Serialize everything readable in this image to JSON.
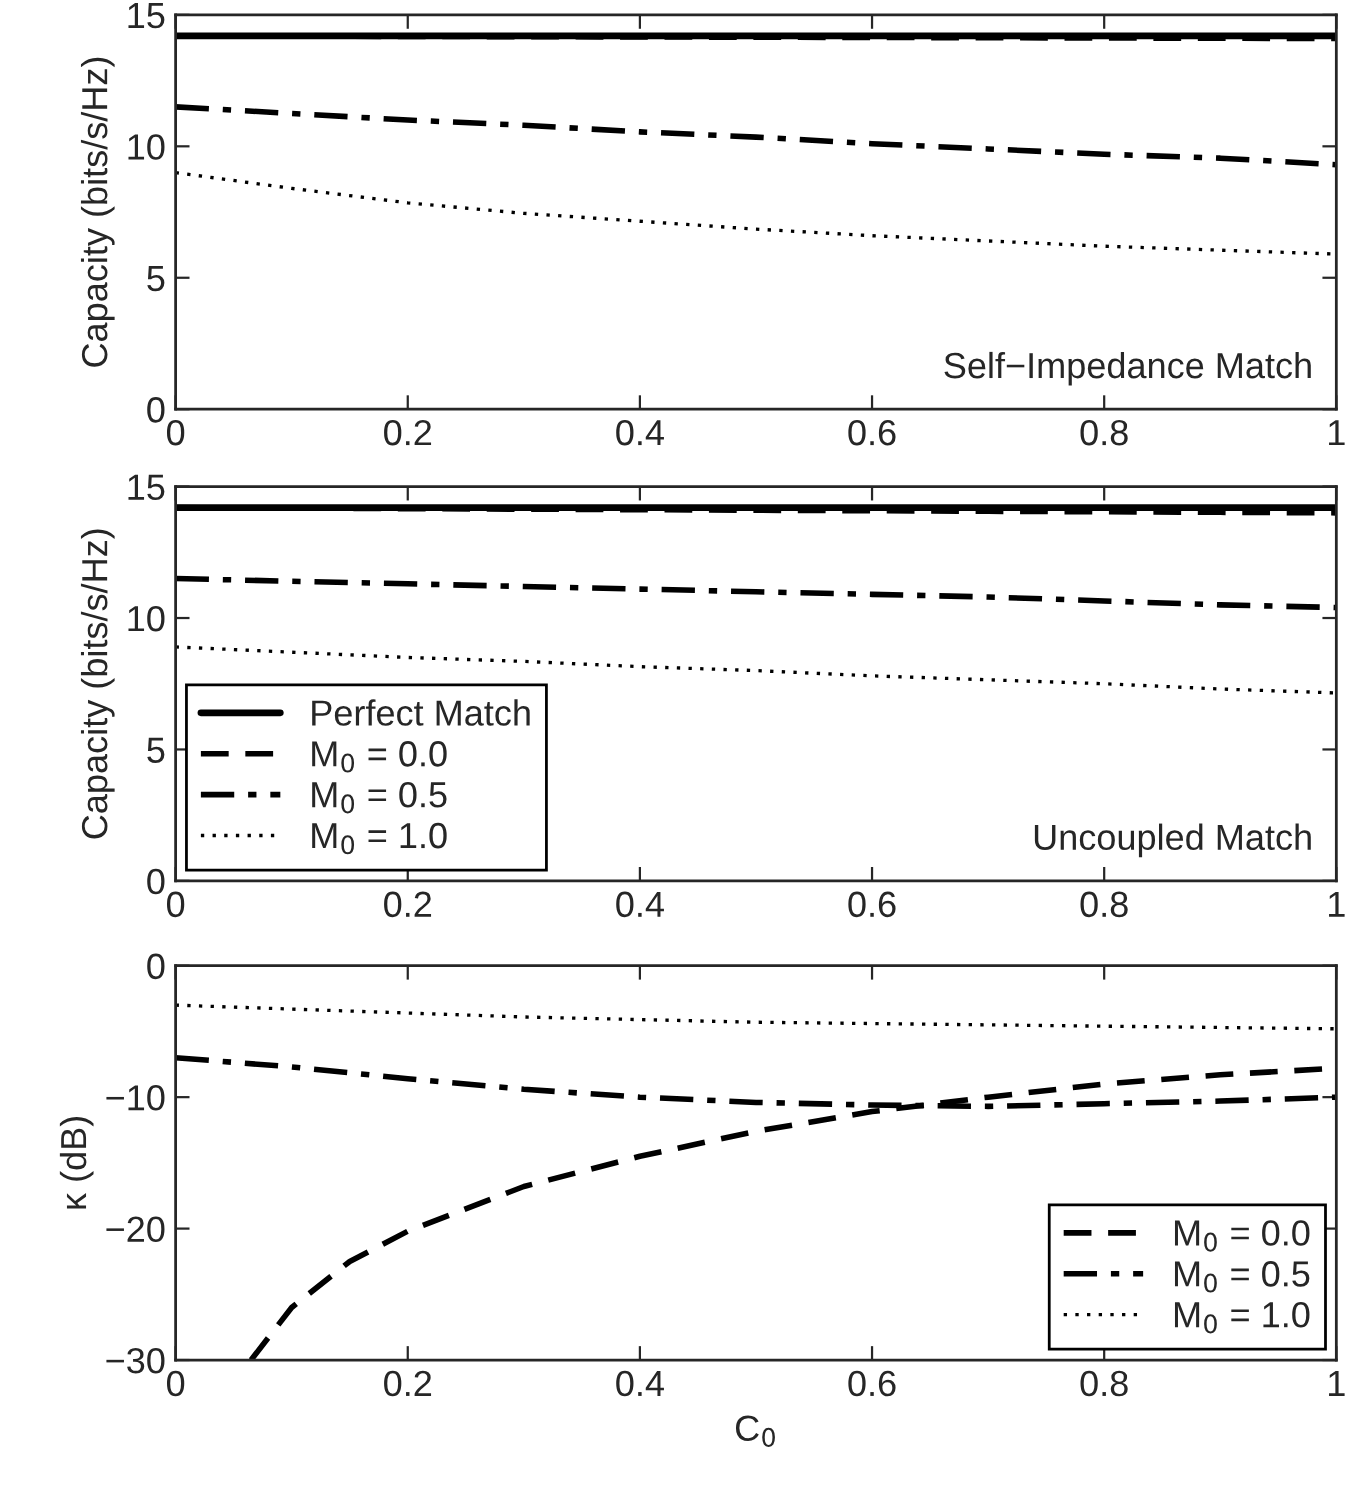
{
  "chart_data": [
    {
      "type": "line",
      "ylabel": "Capacity (bits/s/Hz)",
      "x": [
        0,
        0.1,
        0.2,
        0.3,
        0.4,
        0.5,
        0.6,
        0.7,
        0.8,
        0.9,
        1.0
      ],
      "xlim": [
        0,
        1
      ],
      "xticks": [
        0,
        0.2,
        0.4,
        0.6,
        0.8,
        1
      ],
      "ylim": [
        0,
        15
      ],
      "yticks": [
        0,
        5,
        10,
        15
      ],
      "annotations": [
        "Self−Impedance Match"
      ],
      "legend": false,
      "series": [
        {
          "color": "#000000",
          "line_style": "solid",
          "values": [
            14.2,
            14.2,
            14.2,
            14.2,
            14.2,
            14.2,
            14.2,
            14.2,
            14.2,
            14.2,
            14.2
          ]
        },
        {
          "color": "#000000",
          "line_style": "dashed",
          "values": [
            14.2,
            14.19,
            14.18,
            14.17,
            14.16,
            14.15,
            14.14,
            14.13,
            14.12,
            14.11,
            14.1
          ]
        },
        {
          "color": "#000000",
          "line_style": "dashdot",
          "values": [
            11.5,
            11.25,
            11.0,
            10.8,
            10.55,
            10.35,
            10.1,
            9.9,
            9.7,
            9.55,
            9.3
          ]
        },
        {
          "color": "#000000",
          "line_style": "dotted",
          "values": [
            9.0,
            8.4,
            7.85,
            7.45,
            7.15,
            6.85,
            6.6,
            6.4,
            6.2,
            6.05,
            5.9
          ]
        }
      ]
    },
    {
      "type": "line",
      "ylabel": "Capacity (bits/s/Hz)",
      "x": [
        0,
        0.1,
        0.2,
        0.3,
        0.4,
        0.5,
        0.6,
        0.7,
        0.8,
        0.9,
        1.0
      ],
      "xlim": [
        0,
        1
      ],
      "xticks": [
        0,
        0.2,
        0.4,
        0.6,
        0.8,
        1
      ],
      "ylim": [
        0,
        15
      ],
      "yticks": [
        0,
        5,
        10,
        15
      ],
      "annotations": [
        "Uncoupled Match"
      ],
      "legend": "bottom left",
      "series": [
        {
          "name": "Perfect Match",
          "color": "#000000",
          "line_style": "solid",
          "values": [
            14.2,
            14.2,
            14.2,
            14.2,
            14.2,
            14.2,
            14.2,
            14.2,
            14.2,
            14.2,
            14.2
          ]
        },
        {
          "name": "M$_{0}$ = 0.0",
          "color": "#000000",
          "line_style": "dashed",
          "values": [
            14.2,
            14.18,
            14.16,
            14.14,
            14.12,
            14.1,
            14.08,
            14.06,
            14.04,
            14.02,
            14.0
          ]
        },
        {
          "name": "M$_{0}$ = 0.5",
          "color": "#000000",
          "line_style": "dashdot",
          "values": [
            11.5,
            11.4,
            11.3,
            11.2,
            11.1,
            11.0,
            10.9,
            10.8,
            10.65,
            10.5,
            10.4
          ]
        },
        {
          "name": "M$_{0}$ = 1.0",
          "color": "#000000",
          "line_style": "dotted",
          "values": [
            8.9,
            8.7,
            8.5,
            8.35,
            8.15,
            8.0,
            7.8,
            7.65,
            7.5,
            7.3,
            7.15
          ]
        }
      ]
    },
    {
      "type": "line",
      "xlabel": "C$_{0}$",
      "ylabel": "κ (dB)",
      "x": [
        0,
        0.1,
        0.2,
        0.3,
        0.4,
        0.5,
        0.6,
        0.7,
        0.8,
        0.9,
        1.0
      ],
      "xlim": [
        0,
        1
      ],
      "xticks": [
        0,
        0.2,
        0.4,
        0.6,
        0.8,
        1
      ],
      "ylim": [
        -30,
        0
      ],
      "yticks": [
        {
          "value": -30,
          "label": "−30"
        },
        {
          "value": -20,
          "label": "−20"
        },
        {
          "value": -10,
          "label": "−10"
        },
        0
      ],
      "legend": "bottom right",
      "series": [
        {
          "name": "M$_{0}$ = 0.0",
          "color": "#000000",
          "line_style": "dashed",
          "x": [
            0.065,
            0.1,
            0.15,
            0.2,
            0.3,
            0.4,
            0.5,
            0.6,
            0.7,
            0.8,
            0.9,
            1.0
          ],
          "values": [
            -30,
            -26,
            -22.5,
            -20.2,
            -16.8,
            -14.5,
            -12.6,
            -11.1,
            -10.0,
            -9.0,
            -8.3,
            -7.8
          ]
        },
        {
          "name": "M$_{0}$ = 0.5",
          "color": "#000000",
          "line_style": "dashdot",
          "values": [
            -7,
            -7.7,
            -8.6,
            -9.4,
            -10.0,
            -10.4,
            -10.6,
            -10.7,
            -10.5,
            -10.3,
            -10.0
          ]
        },
        {
          "name": "M$_{0}$ = 1.0",
          "color": "#000000",
          "line_style": "dotted",
          "values": [
            -3.0,
            -3.3,
            -3.6,
            -3.9,
            -4.1,
            -4.3,
            -4.4,
            -4.5,
            -4.6,
            -4.7,
            -4.8
          ]
        }
      ]
    }
  ]
}
